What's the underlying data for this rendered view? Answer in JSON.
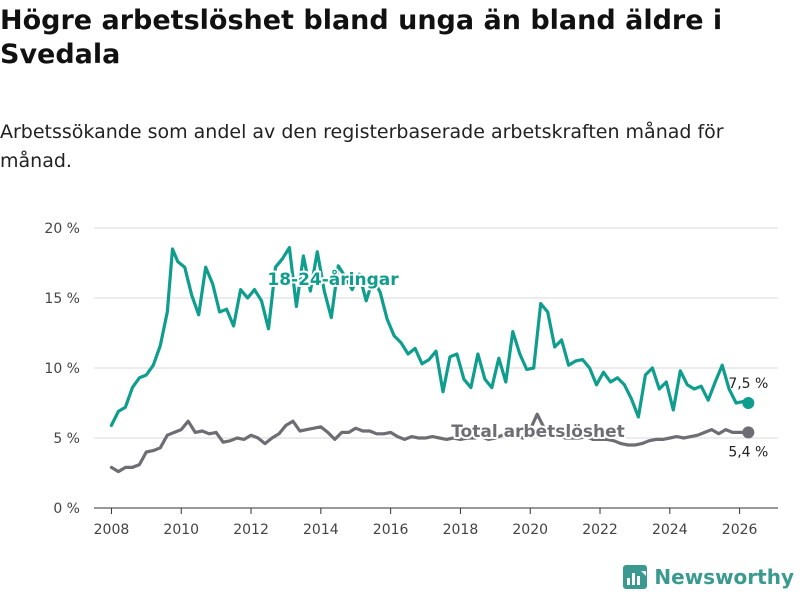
{
  "title": "Högre arbetslöshet bland unga än bland äldre i Svedala",
  "subtitle": "Arbetssökande som andel av den registerbaserade arbetskraften månad för månad.",
  "brand": "Newsworthy",
  "colors": {
    "youth": "#0f9e8e",
    "total": "#6e6d73",
    "grid": "#d9d9d9",
    "brand": "#3a9a8f"
  },
  "chart_data": {
    "type": "line",
    "title": "Högre arbetslöshet bland unga än bland äldre i Svedala",
    "xlabel": "",
    "ylabel": "",
    "ylim": [
      0,
      20
    ],
    "xlim": [
      2007.5,
      2027.1
    ],
    "yticks": [
      0,
      5,
      10,
      15,
      20
    ],
    "ytick_labels": [
      "0 %",
      "5 %",
      "10 %",
      "15 %",
      "20 %"
    ],
    "xticks": [
      2008,
      2010,
      2012,
      2014,
      2016,
      2018,
      2020,
      2022,
      2024,
      2026
    ],
    "xtick_labels": [
      "2008",
      "2010",
      "2012",
      "2014",
      "2016",
      "2018",
      "2020",
      "2022",
      "2024",
      "2026"
    ],
    "grid": true,
    "series": [
      {
        "name": "18-24-åringar",
        "label": "18-24-åringar",
        "end_label": "7,5 %",
        "end_value": 7.5,
        "x": [
          2008.0,
          2008.2,
          2008.4,
          2008.6,
          2008.8,
          2009.0,
          2009.2,
          2009.4,
          2009.6,
          2009.75,
          2009.9,
          2010.1,
          2010.3,
          2010.5,
          2010.7,
          2010.9,
          2011.1,
          2011.3,
          2011.5,
          2011.7,
          2011.9,
          2012.1,
          2012.3,
          2012.5,
          2012.7,
          2012.9,
          2013.1,
          2013.3,
          2013.5,
          2013.7,
          2013.9,
          2014.1,
          2014.3,
          2014.5,
          2014.7,
          2014.9,
          2015.1,
          2015.3,
          2015.5,
          2015.7,
          2015.9,
          2016.1,
          2016.3,
          2016.5,
          2016.7,
          2016.9,
          2017.1,
          2017.3,
          2017.5,
          2017.7,
          2017.9,
          2018.1,
          2018.3,
          2018.5,
          2018.7,
          2018.9,
          2019.1,
          2019.3,
          2019.5,
          2019.7,
          2019.9,
          2020.1,
          2020.3,
          2020.5,
          2020.7,
          2020.9,
          2021.1,
          2021.3,
          2021.5,
          2021.7,
          2021.9,
          2022.1,
          2022.3,
          2022.5,
          2022.7,
          2022.9,
          2023.1,
          2023.3,
          2023.5,
          2023.7,
          2023.9,
          2024.1,
          2024.3,
          2024.5,
          2024.7,
          2024.9,
          2025.1,
          2025.3,
          2025.5,
          2025.7,
          2025.9,
          2026.1,
          2026.25
        ],
        "values": [
          5.9,
          6.9,
          7.2,
          8.6,
          9.3,
          9.5,
          10.2,
          11.6,
          14.0,
          18.5,
          17.6,
          17.2,
          15.2,
          13.8,
          17.2,
          16.0,
          14.0,
          14.2,
          13.0,
          15.6,
          15.0,
          15.6,
          14.8,
          12.8,
          17.2,
          17.8,
          18.6,
          14.4,
          18.0,
          15.5,
          18.3,
          15.5,
          13.6,
          17.3,
          16.5,
          15.6,
          16.7,
          14.8,
          16.4,
          15.4,
          13.5,
          12.3,
          11.8,
          11.0,
          11.4,
          10.3,
          10.6,
          11.2,
          8.3,
          10.8,
          11.0,
          9.2,
          8.6,
          11.0,
          9.2,
          8.6,
          10.7,
          9.0,
          12.6,
          11.0,
          9.9,
          10.0,
          14.6,
          14.0,
          11.5,
          12.0,
          10.2,
          10.5,
          10.6,
          10.0,
          8.8,
          9.7,
          9.0,
          9.3,
          8.8,
          7.8,
          6.5,
          9.5,
          10.0,
          8.5,
          9.0,
          7.0,
          9.8,
          8.8,
          8.5,
          8.7,
          7.7,
          9.0,
          10.2,
          8.5,
          7.5,
          7.6,
          7.5
        ]
      },
      {
        "name": "Total arbetslöshet",
        "label": "Total arbetslöshet",
        "end_label": "5,4 %",
        "end_value": 5.4,
        "x": [
          2008.0,
          2008.2,
          2008.4,
          2008.6,
          2008.8,
          2009.0,
          2009.2,
          2009.4,
          2009.6,
          2009.8,
          2010.0,
          2010.2,
          2010.4,
          2010.6,
          2010.8,
          2011.0,
          2011.2,
          2011.4,
          2011.6,
          2011.8,
          2012.0,
          2012.2,
          2012.4,
          2012.6,
          2012.8,
          2013.0,
          2013.2,
          2013.4,
          2013.6,
          2013.8,
          2014.0,
          2014.2,
          2014.4,
          2014.6,
          2014.8,
          2015.0,
          2015.2,
          2015.4,
          2015.6,
          2015.8,
          2016.0,
          2016.2,
          2016.4,
          2016.6,
          2016.8,
          2017.0,
          2017.2,
          2017.4,
          2017.6,
          2017.8,
          2018.0,
          2018.2,
          2018.4,
          2018.6,
          2018.8,
          2019.0,
          2019.2,
          2019.4,
          2019.6,
          2019.8,
          2020.0,
          2020.2,
          2020.4,
          2020.6,
          2020.8,
          2021.0,
          2021.2,
          2021.4,
          2021.6,
          2021.8,
          2022.0,
          2022.2,
          2022.4,
          2022.6,
          2022.8,
          2023.0,
          2023.2,
          2023.4,
          2023.6,
          2023.8,
          2024.0,
          2024.2,
          2024.4,
          2024.6,
          2024.8,
          2025.0,
          2025.2,
          2025.4,
          2025.6,
          2025.8,
          2026.0,
          2026.25
        ],
        "values": [
          2.9,
          2.6,
          2.9,
          2.9,
          3.1,
          4.0,
          4.1,
          4.3,
          5.2,
          5.4,
          5.6,
          6.2,
          5.4,
          5.5,
          5.3,
          5.4,
          4.7,
          4.8,
          5.0,
          4.9,
          5.2,
          5.0,
          4.6,
          5.0,
          5.3,
          5.9,
          6.2,
          5.5,
          5.6,
          5.7,
          5.8,
          5.4,
          4.9,
          5.4,
          5.4,
          5.7,
          5.5,
          5.5,
          5.3,
          5.3,
          5.4,
          5.1,
          4.9,
          5.1,
          5.0,
          5.0,
          5.1,
          5.0,
          4.9,
          5.0,
          4.9,
          5.0,
          5.0,
          5.1,
          4.9,
          5.0,
          5.2,
          5.1,
          5.1,
          5.0,
          5.6,
          6.7,
          5.7,
          5.3,
          5.2,
          5.0,
          5.0,
          5.0,
          5.1,
          4.9,
          4.9,
          4.9,
          4.8,
          4.6,
          4.5,
          4.5,
          4.6,
          4.8,
          4.9,
          4.9,
          5.0,
          5.1,
          5.0,
          5.1,
          5.2,
          5.4,
          5.6,
          5.3,
          5.6,
          5.4,
          5.4,
          5.4
        ]
      }
    ]
  }
}
